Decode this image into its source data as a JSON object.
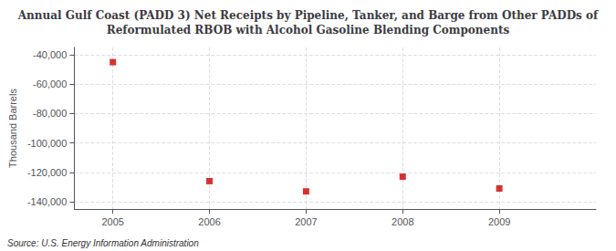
{
  "chart_data": {
    "type": "scatter",
    "title": "Annual Gulf Coast (PADD 3) Net Receipts by Pipeline, Tanker, and Barge from Other PADDs of\nReformulated RBOB with Alcohol Gasoline Blending Components",
    "ylabel": "Thousand Barrels",
    "source": "Source: U.S. Energy Information Administration",
    "x": [
      2005,
      2006,
      2007,
      2008,
      2009
    ],
    "values": [
      -45000,
      -126000,
      -133000,
      -123000,
      -131000
    ],
    "color": "#cc0000",
    "marker": "square",
    "xlim": [
      2004.6,
      2010.0
    ],
    "xticks": [
      2005,
      2006,
      2007,
      2008,
      2009
    ],
    "ylim": [
      -145000,
      -35000
    ],
    "yticks": [
      {
        "value": -40000,
        "label": "-40,000"
      },
      {
        "value": -60000,
        "label": "-60,000"
      },
      {
        "value": -80000,
        "label": "-80,000"
      },
      {
        "value": -100000,
        "label": "-100,000"
      },
      {
        "value": -120000,
        "label": "-120,000"
      },
      {
        "value": -140000,
        "label": "-140,000"
      }
    ],
    "grid": true
  }
}
